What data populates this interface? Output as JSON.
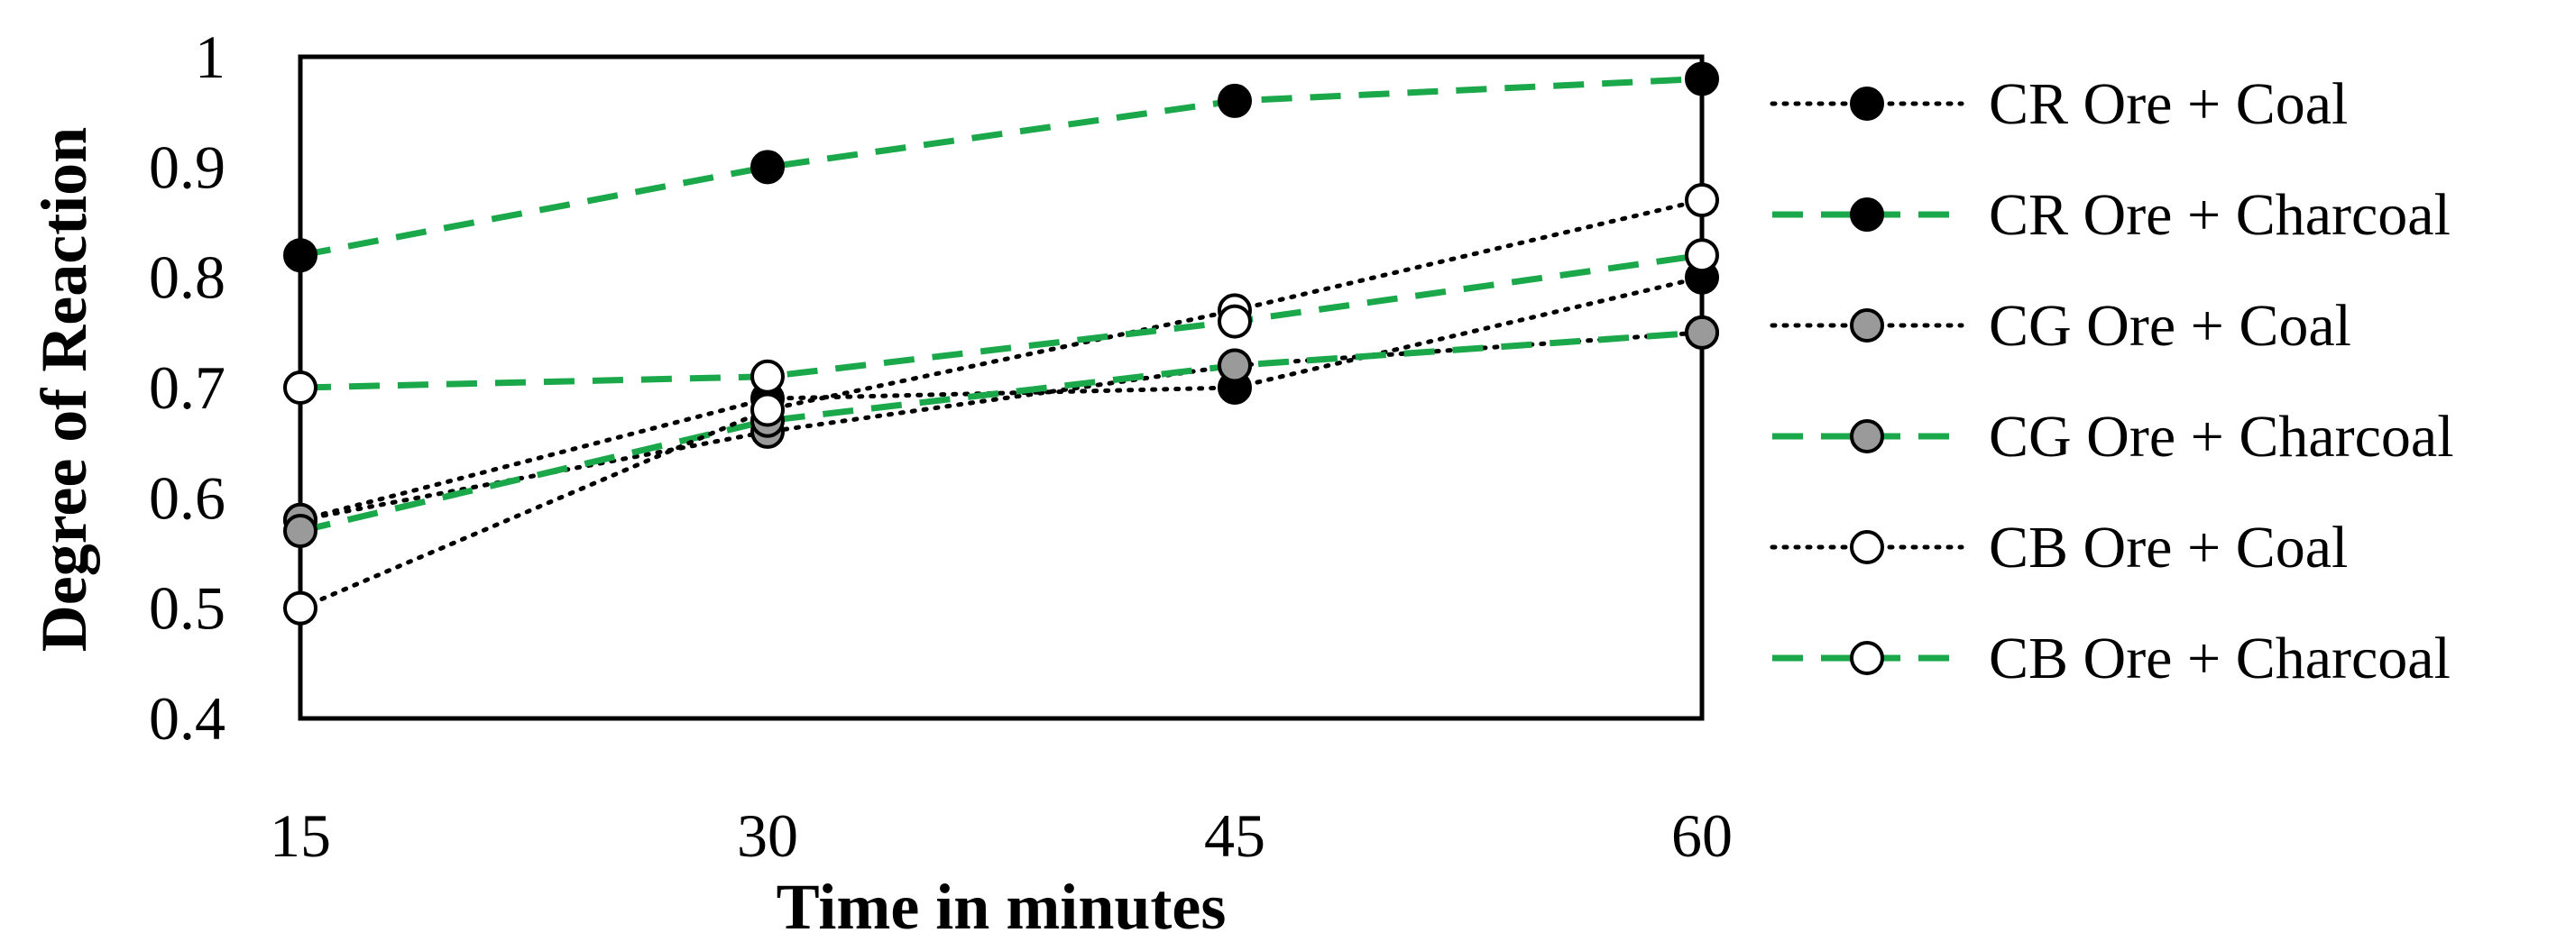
{
  "chart_data": {
    "type": "line",
    "title": "",
    "xlabel": "Time in minutes",
    "ylabel": "Degree of Reaction",
    "x": [
      15,
      30,
      45,
      60
    ],
    "x_ticks": [
      "15",
      "30",
      "45",
      "60"
    ],
    "y_ticks": [
      "0.4",
      "0.5",
      "0.6",
      "0.7",
      "0.8",
      "0.9",
      "1"
    ],
    "ylim": [
      0.4,
      1.0
    ],
    "grid": false,
    "legend_position": "right",
    "series": [
      {
        "name": "CR Ore + Coal",
        "values": [
          0.58,
          0.69,
          0.7,
          0.8
        ],
        "line": "dotted",
        "line_color": "#000000",
        "marker_fill": "#000000"
      },
      {
        "name": "CR Ore + Charcoal",
        "values": [
          0.82,
          0.9,
          0.96,
          0.98
        ],
        "line": "dashed",
        "line_color": "#1aa84a",
        "marker_fill": "#000000"
      },
      {
        "name": "CG Ore + Coal",
        "values": [
          0.58,
          0.66,
          0.72,
          0.75
        ],
        "line": "dotted",
        "line_color": "#000000",
        "marker_fill": "#9a9a9a"
      },
      {
        "name": "CG Ore + Charcoal",
        "values": [
          0.57,
          0.67,
          0.72,
          0.75
        ],
        "line": "dashed",
        "line_color": "#1aa84a",
        "marker_fill": "#9a9a9a"
      },
      {
        "name": "CB Ore + Coal",
        "values": [
          0.5,
          0.68,
          0.77,
          0.87
        ],
        "line": "dotted",
        "line_color": "#000000",
        "marker_fill": "#ffffff"
      },
      {
        "name": "CB Ore + Charcoal",
        "values": [
          0.7,
          0.71,
          0.76,
          0.82
        ],
        "line": "dashed",
        "line_color": "#1aa84a",
        "marker_fill": "#ffffff"
      }
    ]
  }
}
